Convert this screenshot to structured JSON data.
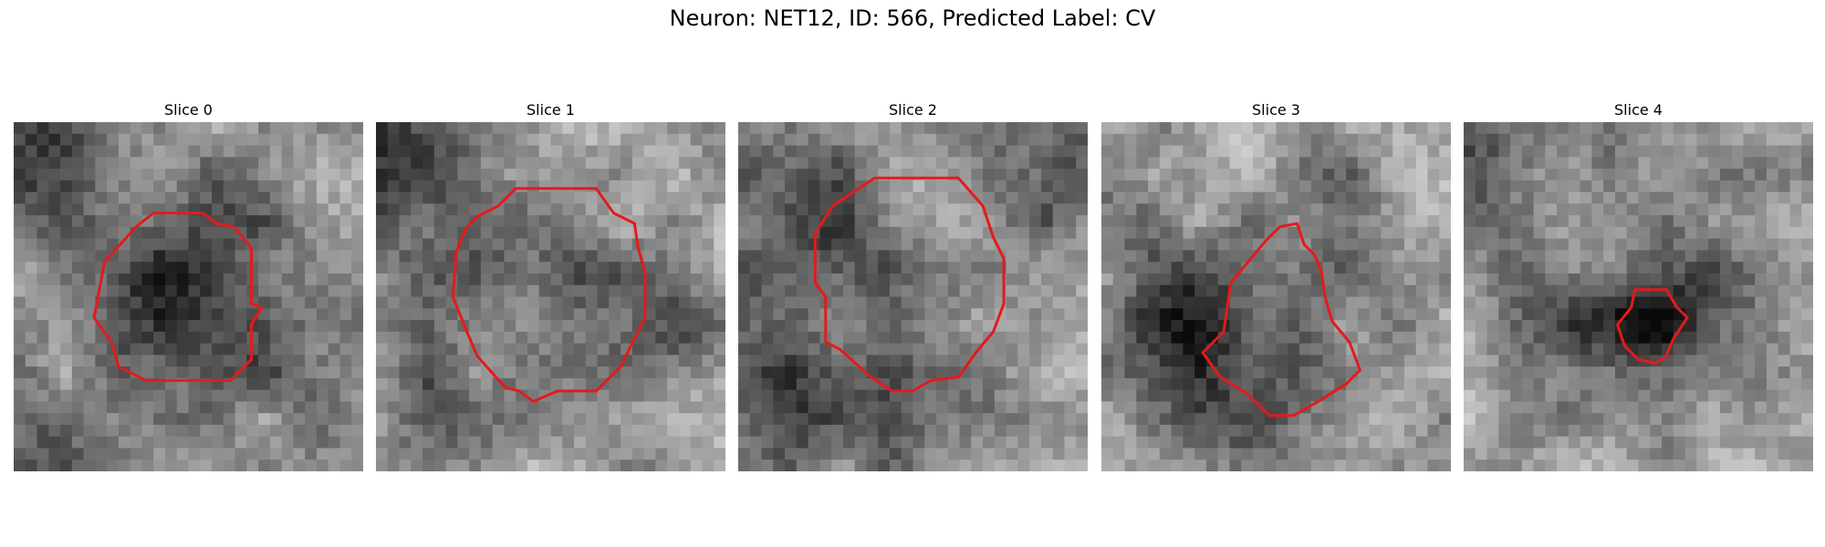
{
  "figure": {
    "title": "Neuron: NET12, ID: 566, Predicted Label: CV",
    "contour_color": "#e41a1c",
    "colormap": "grayscale",
    "panels": [
      {
        "title": "Slice 0",
        "icon": "grayscale-image"
      },
      {
        "title": "Slice 1",
        "icon": "grayscale-image"
      },
      {
        "title": "Slice 2",
        "icon": "grayscale-image"
      },
      {
        "title": "Slice 3",
        "icon": "grayscale-image"
      },
      {
        "title": "Slice 4",
        "icon": "grayscale-image"
      }
    ]
  }
}
